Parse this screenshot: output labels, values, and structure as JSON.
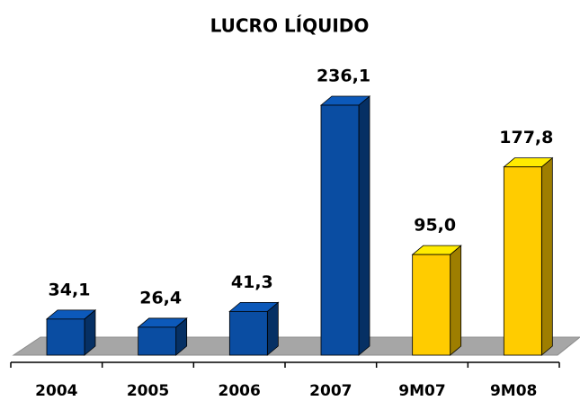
{
  "chart_data": {
    "type": "bar",
    "title": "LUCRO LÍQUIDO",
    "categories": [
      "2004",
      "2005",
      "2006",
      "2007",
      "9M07",
      "9M08"
    ],
    "values": [
      34.1,
      26.4,
      41.3,
      236.1,
      95.0,
      177.8
    ],
    "value_labels": [
      "34,1",
      "26,4",
      "41,3",
      "236,1",
      "95,0",
      "177,8"
    ],
    "colors": [
      "#0a4da2",
      "#0a4da2",
      "#0a4da2",
      "#0a4da2",
      "#ffcc00",
      "#ffcc00"
    ]
  }
}
